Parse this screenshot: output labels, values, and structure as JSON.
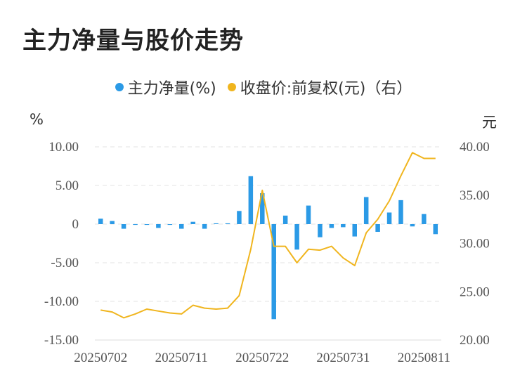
{
  "title": "主力净量与股价走势",
  "chart_data": {
    "type": "bar+line",
    "legend": [
      {
        "name": "主力净量(%)",
        "color": "#2b9ae6"
      },
      {
        "name": "收盘价:前复权(元)（右）",
        "color": "#f0b51e"
      }
    ],
    "left_unit": "%",
    "right_unit": "元",
    "left_ylim": [
      -15,
      10
    ],
    "right_ylim": [
      20,
      40
    ],
    "left_ticks": [
      "10.00",
      "5.00",
      "0",
      "-5.00",
      "-10.00",
      "-15.00"
    ],
    "right_ticks": [
      "40.00",
      "35.00",
      "30.00",
      "25.00",
      "20.00"
    ],
    "x_tick_labels": [
      "20250702",
      "20250711",
      "20250722",
      "20250731",
      "20250811"
    ],
    "x_tick_indices": [
      0,
      7,
      14,
      21,
      28
    ],
    "series": [
      {
        "name": "主力净量(%)",
        "type": "bar",
        "values": [
          0.7,
          0.4,
          -0.6,
          -0.1,
          -0.1,
          -0.5,
          -0.1,
          -0.6,
          0.3,
          -0.6,
          0.1,
          0.1,
          1.7,
          6.2,
          4.0,
          -12.3,
          1.1,
          -3.3,
          2.4,
          -1.7,
          -0.5,
          -0.4,
          -1.6,
          3.5,
          -1.0,
          1.5,
          3.1,
          -0.3,
          1.3,
          -1.3
        ]
      },
      {
        "name": "收盘价:前复权(元)（右）",
        "type": "line",
        "values": [
          23.1,
          22.9,
          22.3,
          22.7,
          23.2,
          23.0,
          22.8,
          22.7,
          23.6,
          23.3,
          23.2,
          23.3,
          24.6,
          29.4,
          35.5,
          29.7,
          29.7,
          28.0,
          29.4,
          29.3,
          29.7,
          28.5,
          27.7,
          31.1,
          32.5,
          34.4,
          37.0,
          39.4,
          38.8,
          38.8
        ]
      }
    ]
  }
}
